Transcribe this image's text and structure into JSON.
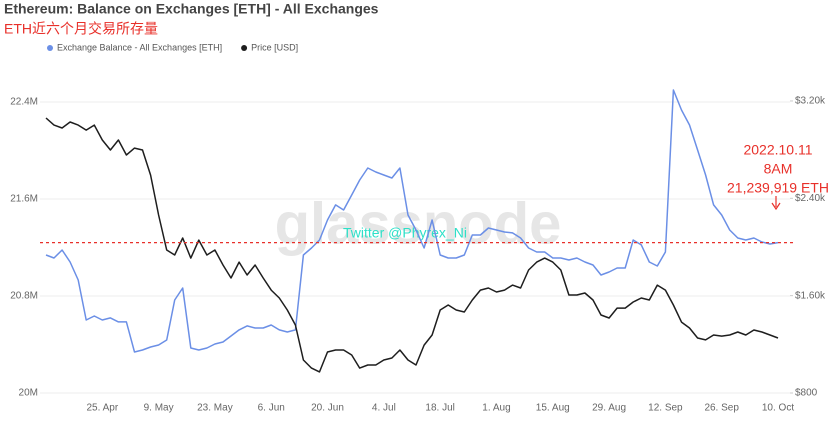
{
  "chart_data": {
    "type": "line",
    "title": "Ethereum: Balance on Exchanges [ETH] - All Exchanges",
    "subtitle": "ETH近六个月交易所存量",
    "watermark": "glassnode",
    "credit": "Twitter @Phyrex_Ni",
    "annotation": [
      "2022.10.11",
      "8AM",
      "21,239,919 ETH"
    ],
    "reference_line": 21239919,
    "reference_color": "#e8302a",
    "x": [
      "11. Apr",
      "13. Apr",
      "15. Apr",
      "17. Apr",
      "19. Apr",
      "21. Apr",
      "23. Apr",
      "25. Apr",
      "27. Apr",
      "29. Apr",
      "1. May",
      "3. May",
      "5. May",
      "7. May",
      "9. May",
      "11. May",
      "13. May",
      "15. May",
      "17. May",
      "19. May",
      "21. May",
      "23. May",
      "25. May",
      "27. May",
      "29. May",
      "31. May",
      "2. Jun",
      "4. Jun",
      "6. Jun",
      "8. Jun",
      "10. Jun",
      "12. Jun",
      "14. Jun",
      "16. Jun",
      "18. Jun",
      "20. Jun",
      "22. Jun",
      "24. Jun",
      "26. Jun",
      "28. Jun",
      "30. Jun",
      "2. Jul",
      "4. Jul",
      "6. Jul",
      "8. Jul",
      "10. Jul",
      "12. Jul",
      "14. Jul",
      "16. Jul",
      "18. Jul",
      "20. Jul",
      "22. Jul",
      "24. Jul",
      "26. Jul",
      "28. Jul",
      "30. Jul",
      "1. Aug",
      "3. Aug",
      "5. Aug",
      "7. Aug",
      "9. Aug",
      "11. Aug",
      "13. Aug",
      "15. Aug",
      "17. Aug",
      "19. Aug",
      "21. Aug",
      "23. Aug",
      "25. Aug",
      "27. Aug",
      "29. Aug",
      "31. Aug",
      "2. Sep",
      "4. Sep",
      "6. Sep",
      "8. Sep",
      "10. Sep",
      "12. Sep",
      "14. Sep",
      "16. Sep",
      "18. Sep",
      "20. Sep",
      "22. Sep",
      "24. Sep",
      "26. Sep",
      "28. Sep",
      "30. Sep",
      "2. Oct",
      "4. Oct",
      "6. Oct",
      "8. Oct",
      "10. Oct"
    ],
    "xticks": [
      "25. Apr",
      "9. May",
      "23. May",
      "6. Jun",
      "20. Jun",
      "4. Jul",
      "18. Jul",
      "1. Aug",
      "15. Aug",
      "29. Aug",
      "12. Sep",
      "26. Sep",
      "10. Oct"
    ],
    "ylim": [
      20000000,
      22870000
    ],
    "yticks": [
      {
        "value": 20000000,
        "label": "20M"
      },
      {
        "value": 20800000,
        "label": "20.8M"
      },
      {
        "value": 21600000,
        "label": "21.6M"
      },
      {
        "value": 22400000,
        "label": "22.4M"
      }
    ],
    "y2lim": [
      800,
      3660
    ],
    "y2ticks": [
      {
        "value": 800,
        "label": "$800"
      },
      {
        "value": 1600,
        "label": "$1.60k"
      },
      {
        "value": 2400,
        "label": "$2.40k"
      },
      {
        "value": 3200,
        "label": "$3.20k"
      }
    ],
    "grid": true,
    "legend": "top-left",
    "series": [
      {
        "name": "Exchange Balance - All Exchanges [ETH]",
        "color": "#6b8fe6",
        "values": [
          21138000,
          21113000,
          21179000,
          21080000,
          20932000,
          20602000,
          20635000,
          20602000,
          20619000,
          20586000,
          20586000,
          20338000,
          20355000,
          20379000,
          20396000,
          20437000,
          20767000,
          20866000,
          20371000,
          20355000,
          20371000,
          20404000,
          20421000,
          20470000,
          20520000,
          20553000,
          20536000,
          20536000,
          20561000,
          20520000,
          20503000,
          20520000,
          21138000,
          21196000,
          21262000,
          21427000,
          21551000,
          21509000,
          21633000,
          21757000,
          21856000,
          21823000,
          21798000,
          21773000,
          21856000,
          21468000,
          21344000,
          21196000,
          21427000,
          21138000,
          21113000,
          21113000,
          21138000,
          21303000,
          21303000,
          21361000,
          21344000,
          21328000,
          21320000,
          21278000,
          21196000,
          21163000,
          21163000,
          21113000,
          21113000,
          21097000,
          21113000,
          21080000,
          21056000,
          20973000,
          20998000,
          21031000,
          21031000,
          21262000,
          21221000,
          21080000,
          21047000,
          21163000,
          22499000,
          22334000,
          22210000,
          22004000,
          21798000,
          21551000,
          21468000,
          21344000,
          21278000,
          21262000,
          21278000,
          21245000,
          21229000,
          21240000
        ]
      },
      {
        "name": "Price [USD]",
        "color": "#1e1e1e",
        "axis": "y2",
        "values": [
          3060,
          3002,
          2978,
          3027,
          3002,
          2961,
          3002,
          2879,
          2797,
          2879,
          2756,
          2813,
          2797,
          2591,
          2263,
          1975,
          1934,
          2074,
          1909,
          2057,
          1934,
          1975,
          1852,
          1745,
          1876,
          1770,
          1852,
          1745,
          1646,
          1581,
          1482,
          1359,
          1071,
          1005,
          973,
          1137,
          1153,
          1153,
          1112,
          1005,
          1030,
          1030,
          1071,
          1088,
          1153,
          1071,
          1030,
          1194,
          1277,
          1482,
          1523,
          1482,
          1466,
          1564,
          1646,
          1663,
          1630,
          1646,
          1687,
          1663,
          1811,
          1876,
          1909,
          1876,
          1811,
          1605,
          1605,
          1622,
          1564,
          1441,
          1416,
          1498,
          1498,
          1548,
          1581,
          1564,
          1687,
          1646,
          1523,
          1383,
          1334,
          1252,
          1236,
          1277,
          1268,
          1277,
          1301,
          1277,
          1318,
          1301,
          1277,
          1252
        ]
      }
    ]
  }
}
